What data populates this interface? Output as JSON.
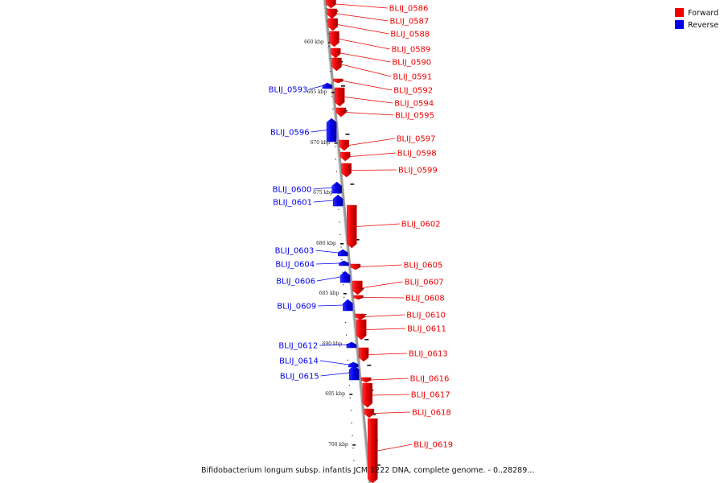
{
  "caption": "Bifidobacterium longum subsp. infantis JCM 1222 DNA, complete genome. - 0..28289...",
  "legend": [
    {
      "label": "Forward",
      "color": "#ee0000"
    },
    {
      "label": "Reverse",
      "color": "#0000ee"
    }
  ],
  "scale_labels": [
    "660 kbp",
    "665 kbp",
    "670 kbp",
    "675 kbp",
    "680 kbp",
    "685 kbp",
    "690 kbp",
    "695 kbp",
    "700 kbp"
  ],
  "genes": [
    {
      "name": "BLIJ_0586",
      "strand": "forward"
    },
    {
      "name": "BLIJ_0587",
      "strand": "forward"
    },
    {
      "name": "BLIJ_0588",
      "strand": "forward"
    },
    {
      "name": "BLIJ_0589",
      "strand": "forward"
    },
    {
      "name": "BLIJ_0590",
      "strand": "forward"
    },
    {
      "name": "BLIJ_0591",
      "strand": "forward"
    },
    {
      "name": "BLIJ_0592",
      "strand": "forward"
    },
    {
      "name": "BLIJ_0593",
      "strand": "reverse"
    },
    {
      "name": "BLIJ_0594",
      "strand": "forward"
    },
    {
      "name": "BLIJ_0595",
      "strand": "forward"
    },
    {
      "name": "BLIJ_0596",
      "strand": "reverse"
    },
    {
      "name": "BLIJ_0597",
      "strand": "forward"
    },
    {
      "name": "BLIJ_0598",
      "strand": "forward"
    },
    {
      "name": "BLIJ_0599",
      "strand": "forward"
    },
    {
      "name": "BLIJ_0600",
      "strand": "reverse"
    },
    {
      "name": "BLIJ_0601",
      "strand": "reverse"
    },
    {
      "name": "BLIJ_0602",
      "strand": "forward"
    },
    {
      "name": "BLIJ_0603",
      "strand": "reverse"
    },
    {
      "name": "BLIJ_0604",
      "strand": "reverse"
    },
    {
      "name": "BLIJ_0605",
      "strand": "forward"
    },
    {
      "name": "BLIJ_0606",
      "strand": "reverse"
    },
    {
      "name": "BLIJ_0607",
      "strand": "forward"
    },
    {
      "name": "BLIJ_0608",
      "strand": "forward"
    },
    {
      "name": "BLIJ_0609",
      "strand": "reverse"
    },
    {
      "name": "BLIJ_0610",
      "strand": "forward"
    },
    {
      "name": "BLIJ_0611",
      "strand": "forward"
    },
    {
      "name": "BLIJ_0612",
      "strand": "reverse"
    },
    {
      "name": "BLIJ_0613",
      "strand": "forward"
    },
    {
      "name": "BLIJ_0614",
      "strand": "reverse"
    },
    {
      "name": "BLIJ_0615",
      "strand": "reverse"
    },
    {
      "name": "BLIJ_0616",
      "strand": "forward"
    },
    {
      "name": "BLIJ_0617",
      "strand": "forward"
    },
    {
      "name": "BLIJ_0618",
      "strand": "forward"
    },
    {
      "name": "BLIJ_0619",
      "strand": "forward"
    }
  ]
}
